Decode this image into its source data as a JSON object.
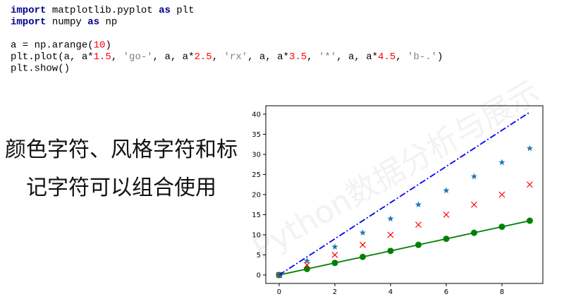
{
  "code": [
    [
      {
        "text": "import",
        "color": "#00008b",
        "bold": true
      },
      {
        "text": " matplotlib.pyplot ",
        "color": "#000000"
      },
      {
        "text": "as",
        "color": "#00008b",
        "bold": true
      },
      {
        "text": " plt",
        "color": "#000000"
      }
    ],
    [
      {
        "text": "import",
        "color": "#00008b",
        "bold": true
      },
      {
        "text": " numpy ",
        "color": "#000000"
      },
      {
        "text": "as",
        "color": "#00008b",
        "bold": true
      },
      {
        "text": " np",
        "color": "#000000"
      }
    ],
    [
      {
        "text": "a = np.arange(",
        "color": "#000000"
      },
      {
        "text": "10",
        "color": "#ff0000"
      },
      {
        "text": ")",
        "color": "#000000"
      }
    ],
    [
      {
        "text": "plt.plot(a, a*",
        "color": "#000000"
      },
      {
        "text": "1.5",
        "color": "#ff0000"
      },
      {
        "text": ", ",
        "color": "#000000"
      },
      {
        "text": "'go-'",
        "color": "#808080"
      },
      {
        "text": ", a, a*",
        "color": "#000000"
      },
      {
        "text": "2.5",
        "color": "#ff0000"
      },
      {
        "text": ", ",
        "color": "#000000"
      },
      {
        "text": "'rx'",
        "color": "#808080"
      },
      {
        "text": ", a, a*",
        "color": "#000000"
      },
      {
        "text": "3.5",
        "color": "#ff0000"
      },
      {
        "text": ", ",
        "color": "#000000"
      },
      {
        "text": "'*'",
        "color": "#808080"
      },
      {
        "text": ", a, a*",
        "color": "#000000"
      },
      {
        "text": "4.5",
        "color": "#ff0000"
      },
      {
        "text": ", ",
        "color": "#000000"
      },
      {
        "text": "'b-.'",
        "color": "#808080"
      },
      {
        "text": ")",
        "color": "#000000"
      }
    ],
    [
      {
        "text": "plt.show()",
        "color": "#000000"
      }
    ]
  ],
  "caption": [
    "颜色字符、风格字符和标",
    "记字符可以组合使用"
  ],
  "watermark": "Python数据分析与展示",
  "chart_data": {
    "type": "line",
    "x": [
      0,
      1,
      2,
      3,
      4,
      5,
      6,
      7,
      8,
      9
    ],
    "series": [
      {
        "color": "#008000",
        "marker": "circle",
        "line": "solid",
        "values": [
          0,
          1.5,
          3,
          4.5,
          6,
          7.5,
          9,
          10.5,
          12,
          13.5
        ]
      },
      {
        "color": "#ff0000",
        "marker": "x",
        "line": "none",
        "values": [
          0,
          2.5,
          5,
          7.5,
          10,
          12.5,
          15,
          17.5,
          20,
          22.5
        ]
      },
      {
        "color": "#1f77b4",
        "marker": "star",
        "line": "none",
        "values": [
          0,
          3.5,
          7,
          10.5,
          14,
          17.5,
          21,
          24.5,
          28,
          31.5
        ]
      },
      {
        "color": "#0000ff",
        "marker": "none",
        "line": "dashdot",
        "values": [
          0,
          4.5,
          9,
          13.5,
          18,
          22.5,
          27,
          31.5,
          36,
          40.5
        ]
      }
    ],
    "xlim": [
      -0.48,
      9.47
    ],
    "ylim": [
      -2.1,
      42.1
    ],
    "xticks": [
      0,
      2,
      4,
      6,
      8
    ],
    "yticks": [
      0,
      5,
      10,
      15,
      20,
      25,
      30,
      35,
      40
    ]
  }
}
